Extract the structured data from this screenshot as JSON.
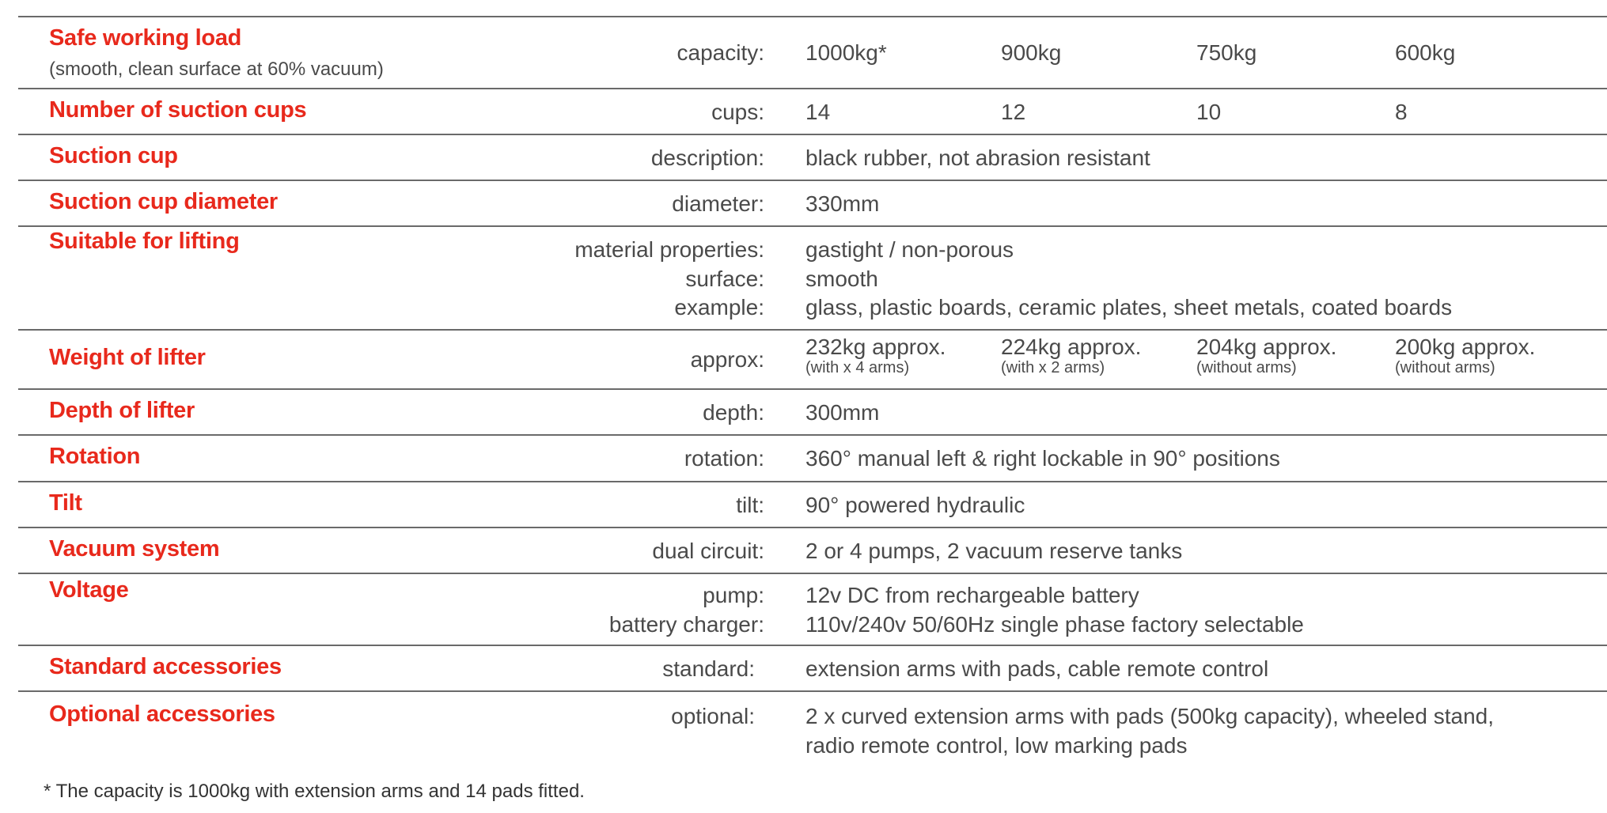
{
  "rows": [
    {
      "heading": "Safe working load",
      "subheading": "(smooth, clean surface at 60% vacuum)",
      "label": "capacity:",
      "values": [
        "1000kg*",
        "900kg",
        "750kg",
        "600kg"
      ]
    },
    {
      "heading": "Number of suction cups",
      "label": "cups:",
      "values": [
        "14",
        "12",
        "10",
        "8"
      ]
    },
    {
      "heading": "Suction cup",
      "label": "description:",
      "value": "black rubber, not abrasion resistant"
    },
    {
      "heading": "Suction cup diameter",
      "label": "diameter:",
      "value": "330mm"
    },
    {
      "heading": "Suitable for lifting",
      "labels": [
        "material properties:",
        "surface:",
        "example:"
      ],
      "values": [
        "gastight / non-porous",
        "smooth",
        "glass, plastic boards, ceramic plates, sheet metals, coated boards"
      ]
    },
    {
      "heading": "Weight of lifter",
      "label": "approx:",
      "values": [
        "232kg approx.",
        "224kg approx.",
        "204kg approx.",
        "200kg approx."
      ],
      "notes": [
        "(with x 4 arms)",
        "(with x 2 arms)",
        "(without arms)",
        "(without arms)"
      ]
    },
    {
      "heading": "Depth of lifter",
      "label": "depth:",
      "value": "300mm"
    },
    {
      "heading": "Rotation",
      "label": "rotation:",
      "value": "360° manual left & right lockable in 90° positions"
    },
    {
      "heading": "Tilt",
      "label": "tilt:",
      "value": "90° powered hydraulic"
    },
    {
      "heading": "Vacuum system",
      "label": "dual circuit:",
      "value": "2 or 4 pumps, 2 vacuum reserve tanks"
    },
    {
      "heading": "Voltage",
      "labels": [
        "pump:",
        "battery charger:"
      ],
      "values": [
        "12v DC from rechargeable battery",
        "110v/240v 50/60Hz single phase factory selectable"
      ]
    },
    {
      "heading": "Standard accessories",
      "label": "standard:",
      "value": "extension arms with pads, cable remote control"
    },
    {
      "heading": "Optional accessories",
      "label": "optional:",
      "values": [
        "2 x curved extension arms with pads (500kg capacity), wheeled stand,",
        "radio remote control, low marking pads"
      ]
    }
  ],
  "footnote": "* The capacity is 1000kg with extension arms and 14 pads fitted.",
  "colors": {
    "heading": "#e8291c",
    "text": "#4a4a4a",
    "rule": "#6a6a6a"
  }
}
